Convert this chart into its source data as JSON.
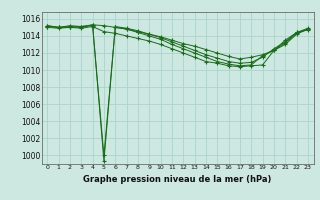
{
  "title": "Graphe pression niveau de la mer (hPa)",
  "bg_color": "#cce8e0",
  "grid_color": "#aad4cc",
  "line_color": "#1a6b1a",
  "xlim": [
    -0.5,
    23.5
  ],
  "ylim": [
    999.0,
    1016.8
  ],
  "yticks": [
    1000,
    1002,
    1004,
    1006,
    1008,
    1010,
    1012,
    1014,
    1016
  ],
  "xticks": [
    0,
    1,
    2,
    3,
    4,
    5,
    6,
    7,
    8,
    9,
    10,
    11,
    12,
    13,
    14,
    15,
    16,
    17,
    18,
    19,
    20,
    21,
    22,
    23
  ],
  "series": [
    [
      1015.2,
      1015.0,
      1015.1,
      1015.0,
      1015.3,
      1015.2,
      1015.0,
      1014.8,
      1014.5,
      1014.2,
      1013.9,
      1013.5,
      1013.1,
      1012.8,
      1012.4,
      1012.0,
      1011.6,
      1011.3,
      1011.5,
      1011.8,
      1012.3,
      1013.0,
      1014.2,
      1014.8
    ],
    [
      1015.0,
      1014.9,
      1015.0,
      1014.9,
      1015.1,
      1014.5,
      1014.3,
      1014.0,
      1013.7,
      1013.4,
      1013.0,
      1012.5,
      1012.0,
      1011.5,
      1011.0,
      1010.8,
      1010.5,
      1010.4,
      1010.5,
      1010.6,
      1012.3,
      1013.5,
      1014.4,
      1014.7
    ],
    [
      1015.1,
      1015.0,
      1015.0,
      1015.1,
      1015.2,
      1000.0,
      1015.0,
      1014.8,
      1014.4,
      1014.0,
      1013.6,
      1013.0,
      1012.5,
      1012.0,
      1011.5,
      1011.0,
      1010.7,
      1010.5,
      1010.6,
      1011.7,
      1012.3,
      1013.2,
      1014.3,
      1014.8
    ],
    [
      1015.2,
      1015.0,
      1015.2,
      1015.1,
      1015.3,
      999.3,
      1015.1,
      1014.9,
      1014.6,
      1014.2,
      1013.8,
      1013.3,
      1012.8,
      1012.3,
      1011.8,
      1011.4,
      1011.0,
      1010.8,
      1010.9,
      1011.5,
      1012.5,
      1013.3,
      1014.4,
      1014.9
    ]
  ]
}
